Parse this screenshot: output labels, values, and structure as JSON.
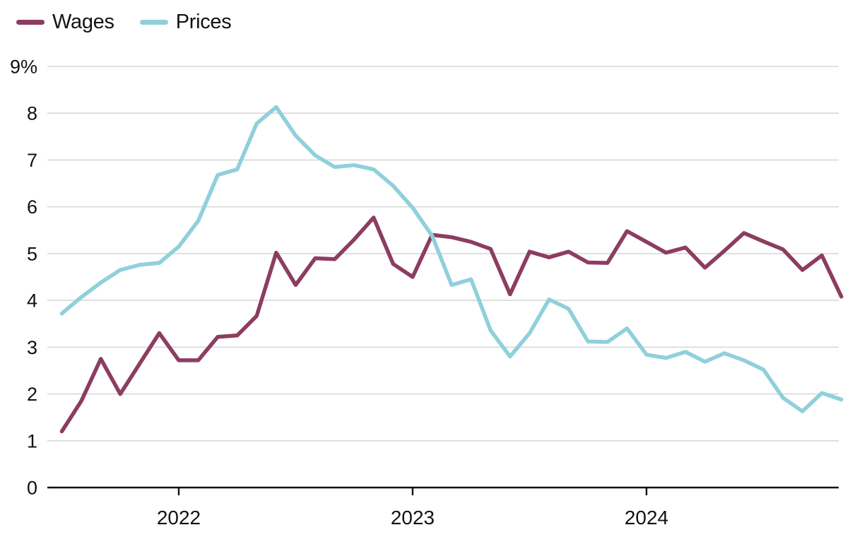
{
  "legend": [
    {
      "label": "Wages",
      "color": "#8C3D60"
    },
    {
      "label": "Prices",
      "color": "#8FD0DB"
    }
  ],
  "colors": {
    "wages_line": "#8C3D60",
    "prices_line": "#8FD0DB",
    "gridline": "#D8D8D8",
    "axis": "#111111",
    "text": "#121212"
  },
  "y_axis": {
    "tick_labels": [
      "9%",
      "8",
      "7",
      "6",
      "5",
      "4",
      "3",
      "2",
      "1",
      "0"
    ],
    "tick_values": [
      9,
      8,
      7,
      6,
      5,
      4,
      3,
      2,
      1,
      0
    ]
  },
  "x_axis": {
    "ticks": [
      {
        "label": "2022",
        "month_index": 6
      },
      {
        "label": "2023",
        "month_index": 18
      },
      {
        "label": "2024",
        "month_index": 30
      }
    ]
  },
  "chart_data": {
    "type": "line",
    "title": "",
    "xlabel": "",
    "ylabel": "%",
    "ylim": [
      0,
      9
    ],
    "grid": "horizontal",
    "legend_position": "top-left",
    "x": [
      "Jul 2021",
      "Aug 2021",
      "Sep 2021",
      "Oct 2021",
      "Nov 2021",
      "Dec 2021",
      "Jan 2022",
      "Feb 2022",
      "Mar 2022",
      "Apr 2022",
      "May 2022",
      "Jun 2022",
      "Jul 2022",
      "Aug 2022",
      "Sep 2022",
      "Oct 2022",
      "Nov 2022",
      "Dec 2022",
      "Jan 2023",
      "Feb 2023",
      "Mar 2023",
      "Apr 2023",
      "May 2023",
      "Jun 2023",
      "Jul 2023",
      "Aug 2023",
      "Sep 2023",
      "Oct 2023",
      "Nov 2023",
      "Dec 2023",
      "Jan 2024",
      "Feb 2024",
      "Mar 2024",
      "Apr 2024",
      "May 2024",
      "Jun 2024",
      "Jul 2024",
      "Aug 2024",
      "Sep 2024",
      "Oct 2024",
      "Nov 2024"
    ],
    "series": [
      {
        "name": "Wages",
        "color": "#8C3D60",
        "values": [
          1.2,
          1.85,
          2.75,
          2.0,
          2.65,
          3.3,
          2.72,
          2.72,
          3.22,
          3.25,
          3.67,
          5.02,
          4.33,
          4.9,
          4.88,
          5.3,
          5.77,
          4.78,
          4.5,
          5.4,
          5.35,
          5.25,
          5.1,
          4.13,
          5.04,
          4.92,
          5.04,
          4.81,
          4.8,
          5.48,
          5.25,
          5.02,
          5.13,
          4.7,
          5.06,
          5.44,
          5.26,
          5.09,
          4.65,
          4.96,
          4.08
        ]
      },
      {
        "name": "Prices",
        "color": "#8FD0DB",
        "values": [
          3.72,
          4.07,
          4.38,
          4.65,
          4.76,
          4.8,
          5.15,
          5.7,
          6.68,
          6.8,
          7.78,
          8.13,
          7.52,
          7.1,
          6.85,
          6.89,
          6.8,
          6.45,
          5.98,
          5.38,
          4.33,
          4.45,
          3.36,
          2.8,
          3.3,
          4.02,
          3.82,
          3.12,
          3.11,
          3.4,
          2.84,
          2.77,
          2.9,
          2.69,
          2.87,
          2.72,
          2.52,
          1.92,
          1.63,
          2.02,
          1.88
        ]
      }
    ]
  }
}
